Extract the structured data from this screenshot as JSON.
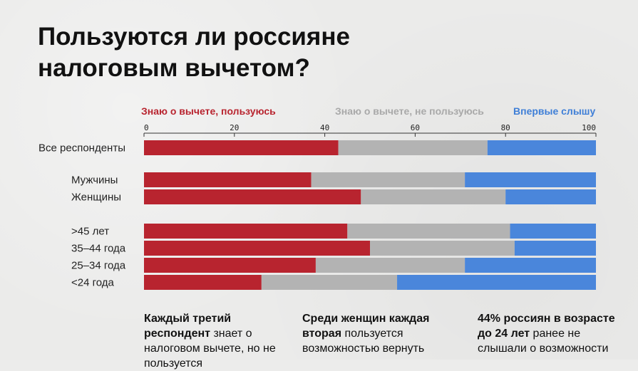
{
  "title": "Пользуются ли россияне налоговым вычетом?",
  "colors": {
    "use": "#b8242f",
    "not_use": "#b3b3b3",
    "first_time": "#4a86db"
  },
  "legend": [
    {
      "label": "Знаю о вычете, пользуюсь",
      "color": "#b8242f"
    },
    {
      "label": "Знаю о вычете, не пользуюсь",
      "color": "#a9a9a9"
    },
    {
      "label": "Впервые слышу",
      "color": "#3f7fd7"
    }
  ],
  "chart_data": {
    "type": "bar",
    "orientation": "horizontal",
    "stacked": true,
    "xlim": [
      0,
      100
    ],
    "xticks": [
      0,
      20,
      40,
      60,
      80,
      100
    ],
    "categories": [
      "Все респонденты",
      "Мужчины",
      "Женщины",
      ">45 лет",
      "35–44 года",
      "25–34 года",
      "<24 года"
    ],
    "groups": [
      [
        0
      ],
      [
        1,
        2
      ],
      [
        3,
        4,
        5,
        6
      ]
    ],
    "series": [
      {
        "name": "Знаю о вычете, пользуюсь",
        "values": [
          43,
          37,
          48,
          45,
          50,
          38,
          26
        ]
      },
      {
        "name": "Знаю о вычете, не пользуюсь",
        "values": [
          33,
          34,
          32,
          36,
          32,
          33,
          30
        ]
      },
      {
        "name": "Впервые слышу",
        "values": [
          24,
          29,
          20,
          19,
          18,
          29,
          44
        ]
      }
    ]
  },
  "notes": [
    {
      "bold": "Каждый третий респондент",
      "text": " знает о налоговом вычете, но не пользуется"
    },
    {
      "bold": "Среди женщин каждая вторая",
      "text": " пользуется возможностью вернуть"
    },
    {
      "bold": "44% россиян в возрасте до 24 лет",
      "text": " ранее не слышали о возможности"
    }
  ]
}
